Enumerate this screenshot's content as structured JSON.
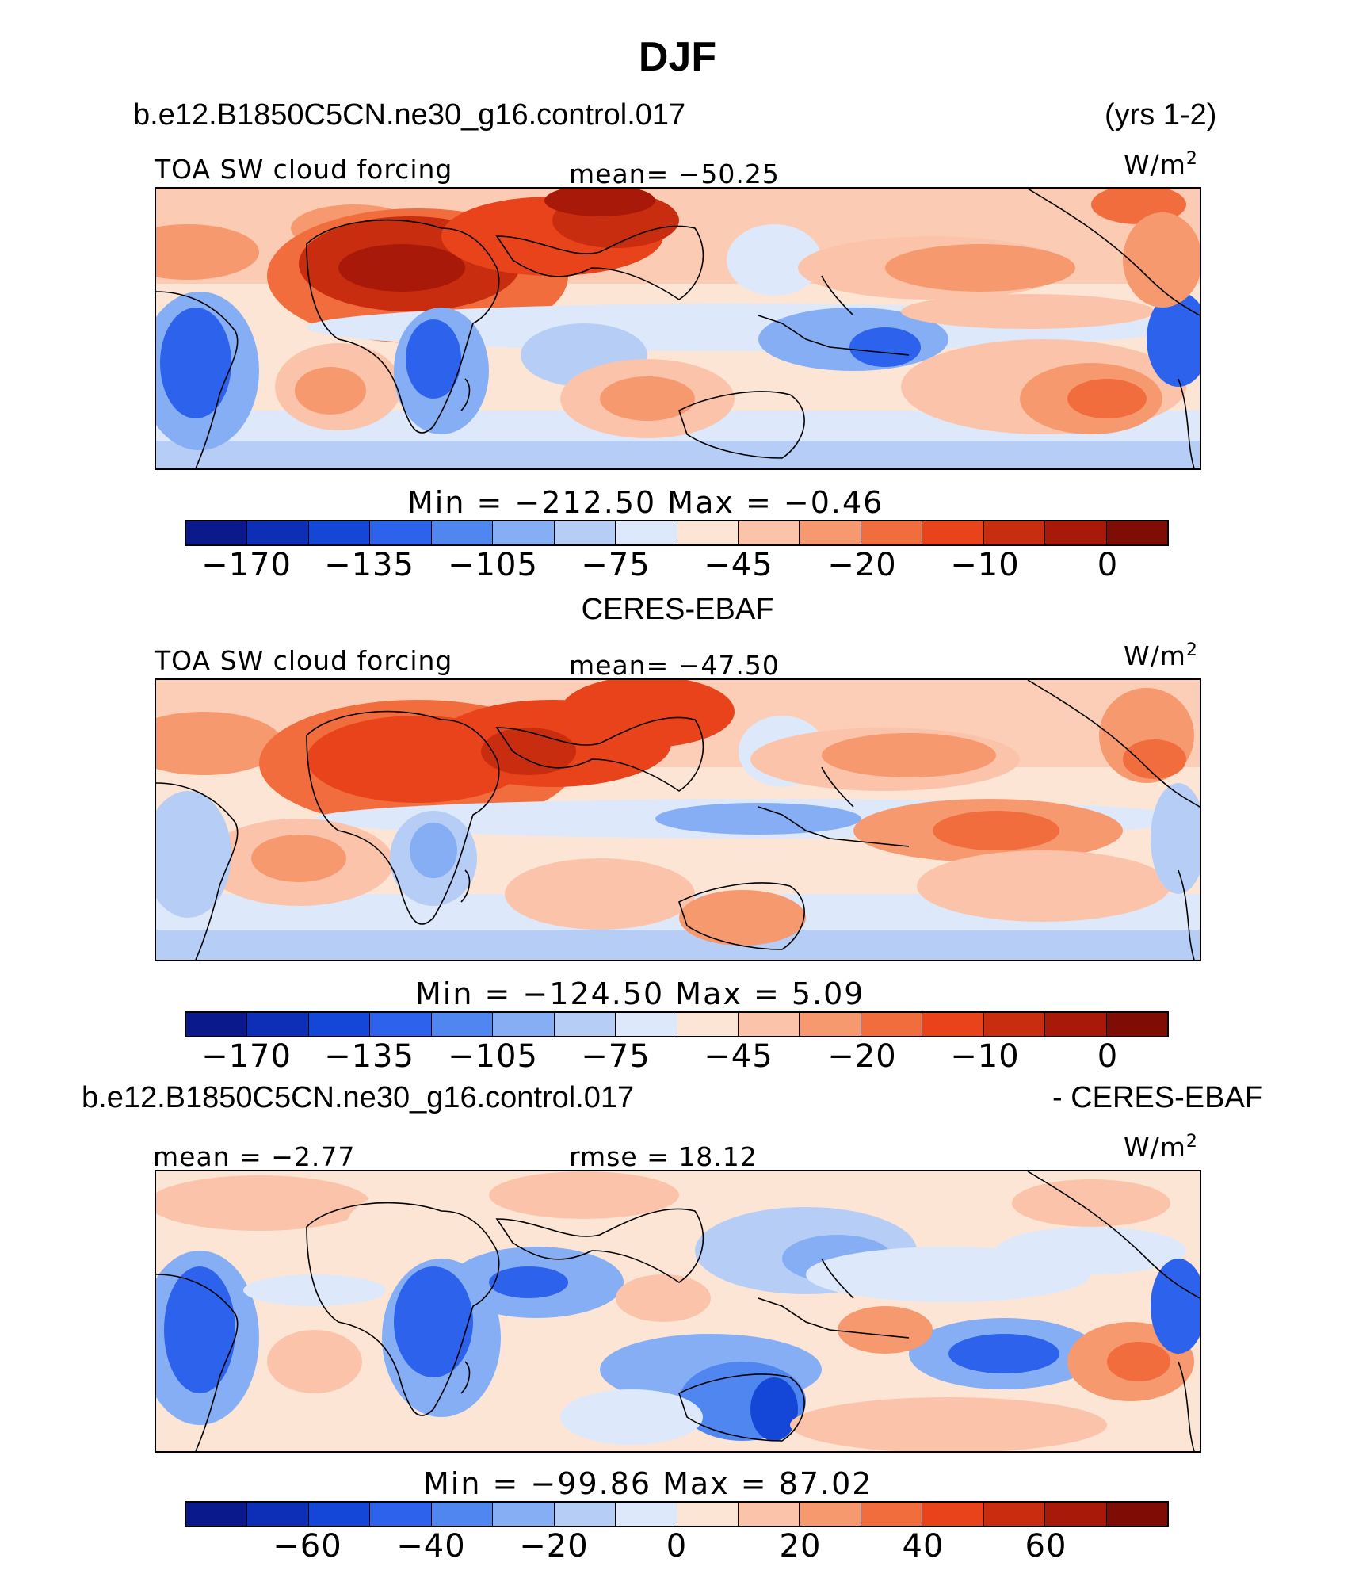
{
  "page": {
    "title": "DJF"
  },
  "colors": {
    "palette": [
      "#0a1a8c",
      "#0d2fb8",
      "#1447d8",
      "#2c62ec",
      "#5086f0",
      "#86aef4",
      "#b6cdf6",
      "#dde9fa",
      "#fde5d6",
      "#fbc4aa",
      "#f7996f",
      "#f26d3d",
      "#e8431a",
      "#c82d0f",
      "#a8190a",
      "#7f0d05"
    ],
    "coast": "#000000"
  },
  "panels": [
    {
      "id": "model",
      "case_title": "b.e12.B1850C5CN.ne30_g16.control.017",
      "years": "(yrs 1-2)",
      "variable": "TOA SW cloud forcing",
      "mean_text": "mean=  −50.25",
      "units": "W/m",
      "units_sup": "2",
      "minmax_text": "Min  =  −212.50  Max  =    −0.46",
      "colorbar_ticks": [
        "−170",
        "−135",
        "−105",
        "−75",
        "−45",
        "−20",
        "−10",
        "0"
      ]
    },
    {
      "id": "obs",
      "case_title": "CERES-EBAF",
      "variable": "TOA SW cloud forcing",
      "mean_text": "mean=  −47.50",
      "units": "W/m",
      "units_sup": "2",
      "minmax_text": "Min  =  −124.50  Max  =     5.09",
      "colorbar_ticks": [
        "−170",
        "−135",
        "−105",
        "−75",
        "−45",
        "−20",
        "−10",
        "0"
      ]
    },
    {
      "id": "diff",
      "case_title": "b.e12.B1850C5CN.ne30_g16.control.017",
      "case_title_right": "- CERES-EBAF",
      "mean_text": "mean =   −2.77",
      "rmse_text": "rmse  =   18.12",
      "units": "W/m",
      "units_sup": "2",
      "minmax_text": "Min  =  −99.86  Max  =    87.02",
      "colorbar_ticks": [
        "−60",
        "−40",
        "−20",
        "0",
        "20",
        "40",
        "60"
      ]
    }
  ],
  "chart_data": [
    {
      "type": "heatmap",
      "title": "TOA SW cloud forcing",
      "subtitle": "b.e12.B1850C5CN.ne30_g16.control.017 (yrs 1-2)",
      "season": "DJF",
      "units": "W/m2",
      "mean": -50.25,
      "min": -212.5,
      "max": -0.46,
      "contour_levels": [
        -170,
        -150,
        -135,
        -120,
        -105,
        -90,
        -75,
        -60,
        -45,
        -30,
        -20,
        -15,
        -10,
        -5,
        0
      ],
      "colorbar_labels": [
        -170,
        -135,
        -105,
        -75,
        -45,
        -20,
        -10,
        0
      ]
    },
    {
      "type": "heatmap",
      "title": "TOA SW cloud forcing",
      "subtitle": "CERES-EBAF",
      "season": "DJF",
      "units": "W/m2",
      "mean": -47.5,
      "min": -124.5,
      "max": 5.09,
      "contour_levels": [
        -170,
        -150,
        -135,
        -120,
        -105,
        -90,
        -75,
        -60,
        -45,
        -30,
        -20,
        -15,
        -10,
        -5,
        0
      ],
      "colorbar_labels": [
        -170,
        -135,
        -105,
        -75,
        -45,
        -20,
        -10,
        0
      ]
    },
    {
      "type": "heatmap",
      "title": "b.e12.B1850C5CN.ne30_g16.control.017 - CERES-EBAF",
      "season": "DJF",
      "units": "W/m2",
      "mean": -2.77,
      "rmse": 18.12,
      "min": -99.86,
      "max": 87.02,
      "contour_levels": [
        -70,
        -60,
        -50,
        -40,
        -30,
        -20,
        -10,
        0,
        10,
        20,
        30,
        40,
        50,
        60,
        70
      ],
      "colorbar_labels": [
        -60,
        -40,
        -20,
        0,
        20,
        40,
        60
      ]
    }
  ]
}
